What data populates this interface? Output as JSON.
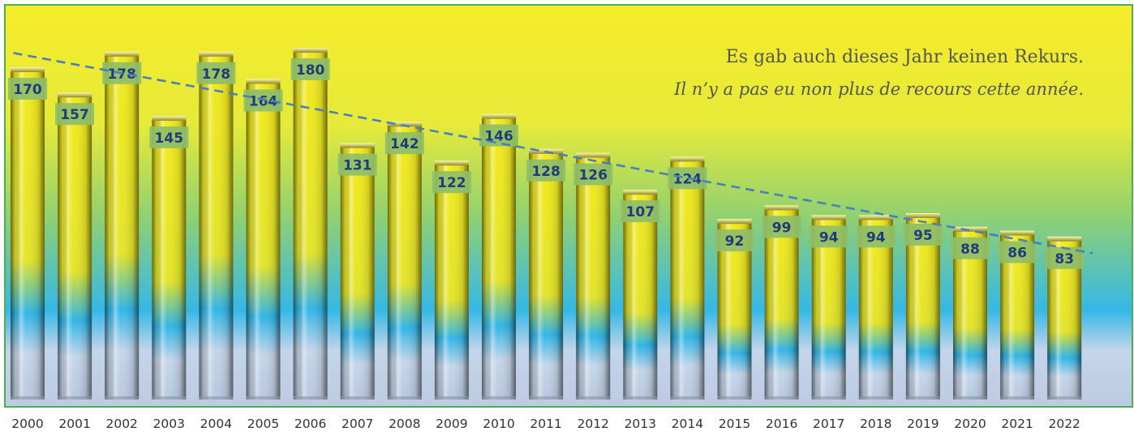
{
  "chart_data": {
    "type": "bar",
    "title": "",
    "xlabel": "",
    "ylabel": "",
    "categories": [
      "2000",
      "2001",
      "2002",
      "2003",
      "2004",
      "2005",
      "2006",
      "2007",
      "2008",
      "2009",
      "2010",
      "2011",
      "2012",
      "2013",
      "2014",
      "2015",
      "2016",
      "2017",
      "2018",
      "2019",
      "2020",
      "2021",
      "2022"
    ],
    "values": [
      170,
      157,
      178,
      145,
      178,
      164,
      180,
      131,
      142,
      122,
      146,
      128,
      126,
      107,
      124,
      92,
      99,
      94,
      94,
      95,
      88,
      86,
      83
    ],
    "ylim": [
      0,
      200
    ],
    "grid": false,
    "legend": "none",
    "trendline": {
      "type": "linear",
      "color": "#4a7fc1",
      "style": "dashed"
    },
    "annotations": [
      "Es gab auch dieses Jahr keinen Rekurs.",
      "Il n’y a pas eu non plus de recours cette année."
    ],
    "colors": {
      "background_top": "#f6ec2a",
      "background_mid": "#93d16f",
      "background_low": "#35b8e6",
      "frame": "#4caf50",
      "bar_top": "#f3ea1c",
      "bar_mid": "#2fb6e8",
      "bar_bottom": "#c6d6ea",
      "label_box": "#8fbe68",
      "label_text": "#1f3c7a",
      "axis_text": "#333333"
    }
  }
}
